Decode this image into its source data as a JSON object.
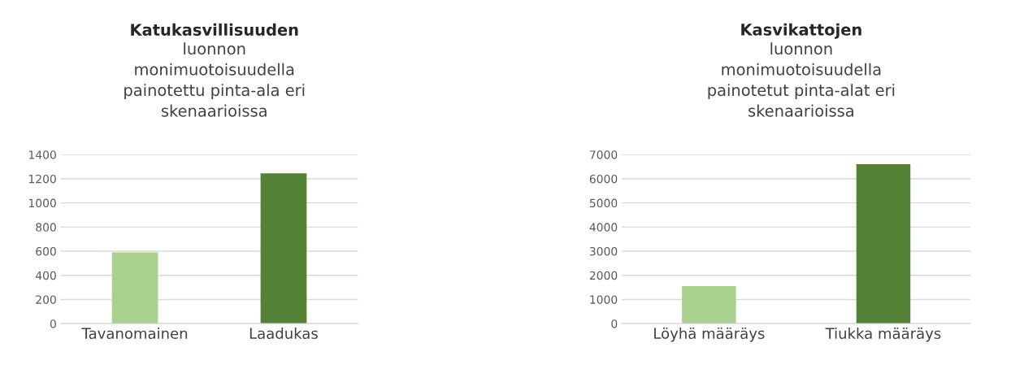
{
  "chart_data": [
    {
      "type": "bar",
      "title": "Katukasvillisuuden",
      "subtitle": "luonnon monimuotoisuudella painotettu pinta-ala eri skenaarioissa",
      "categories": [
        "Tavanomainen",
        "Laadukas"
      ],
      "values": [
        590,
        1245
      ],
      "colors": [
        "#a9d18e",
        "#548235"
      ],
      "ylim": [
        0,
        1400
      ],
      "yticks": [
        0,
        200,
        400,
        600,
        800,
        1000,
        1200,
        1400
      ],
      "grid": "y",
      "legend": false
    },
    {
      "type": "bar",
      "title": "Kasvikattojen",
      "subtitle": "luonnon monimuotoisuudella painotetut pinta-alat eri skenaarioissa",
      "categories": [
        "Löyhä määräys",
        "Tiukka määräys"
      ],
      "values": [
        1550,
        6600
      ],
      "colors": [
        "#a9d18e",
        "#548235"
      ],
      "ylim": [
        0,
        7000
      ],
      "yticks": [
        0,
        1000,
        2000,
        3000,
        4000,
        5000,
        6000,
        7000
      ],
      "grid": "y",
      "legend": false
    }
  ]
}
